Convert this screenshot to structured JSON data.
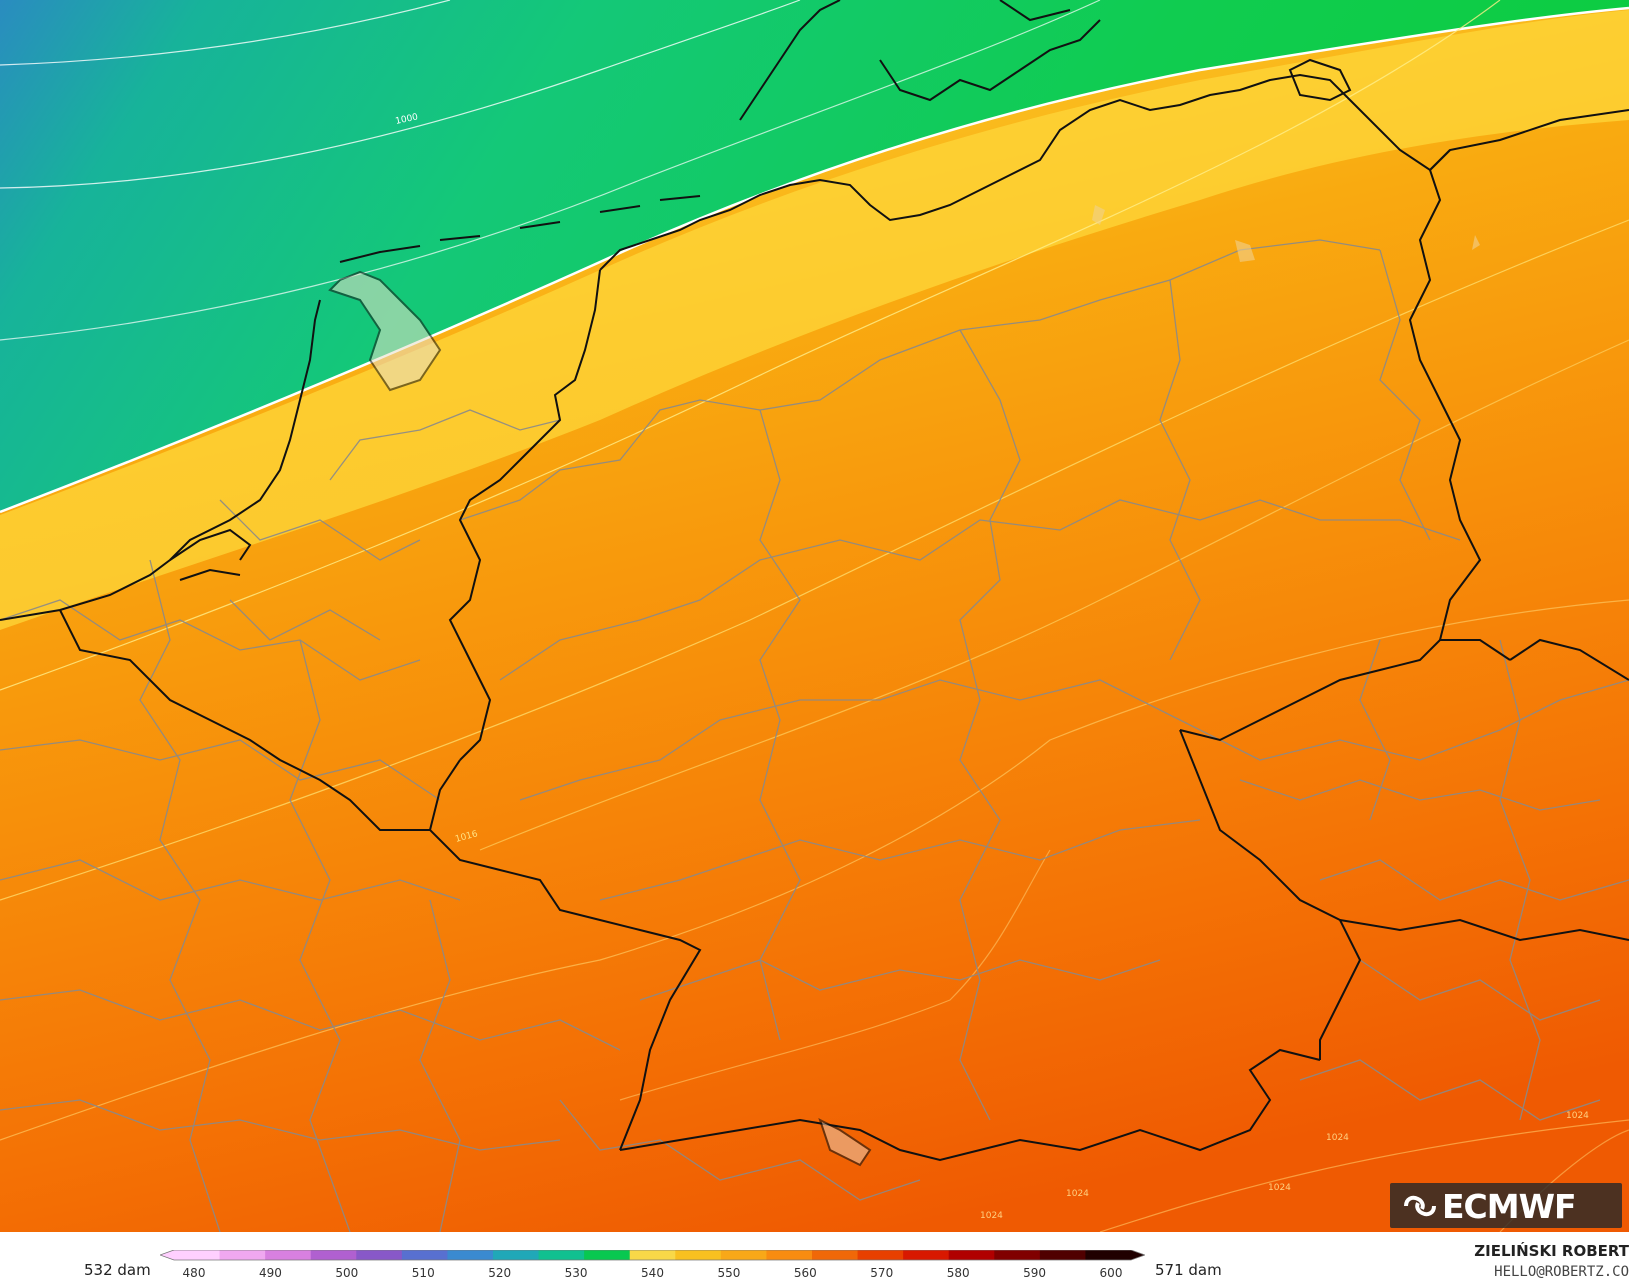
{
  "map": {
    "contour_labels": [
      "1000",
      "1016",
      "1024",
      "1024",
      "1024",
      "1024",
      "1024"
    ]
  },
  "legend": {
    "min_label": "532 dam",
    "max_label": "571 dam",
    "ticks": [
      "480",
      "490",
      "500",
      "510",
      "520",
      "530",
      "540",
      "550",
      "560",
      "570",
      "580",
      "590",
      "600"
    ],
    "colors": [
      "#ffd0ff",
      "#f0a8f0",
      "#d880e0",
      "#b060d0",
      "#8858c8",
      "#5870d0",
      "#3a8ad0",
      "#20a8b8",
      "#10c090",
      "#08c850",
      "#f8d848",
      "#f8c020",
      "#f8a818",
      "#f88c10",
      "#f06808",
      "#e84000",
      "#d81800",
      "#b00000",
      "#800000",
      "#500000",
      "#200000"
    ]
  },
  "branding": {
    "logo_text": "ECMWF",
    "author": "ZIELIŃSKI ROBERT",
    "email": "HELLO@ROBERTZ.CO"
  }
}
